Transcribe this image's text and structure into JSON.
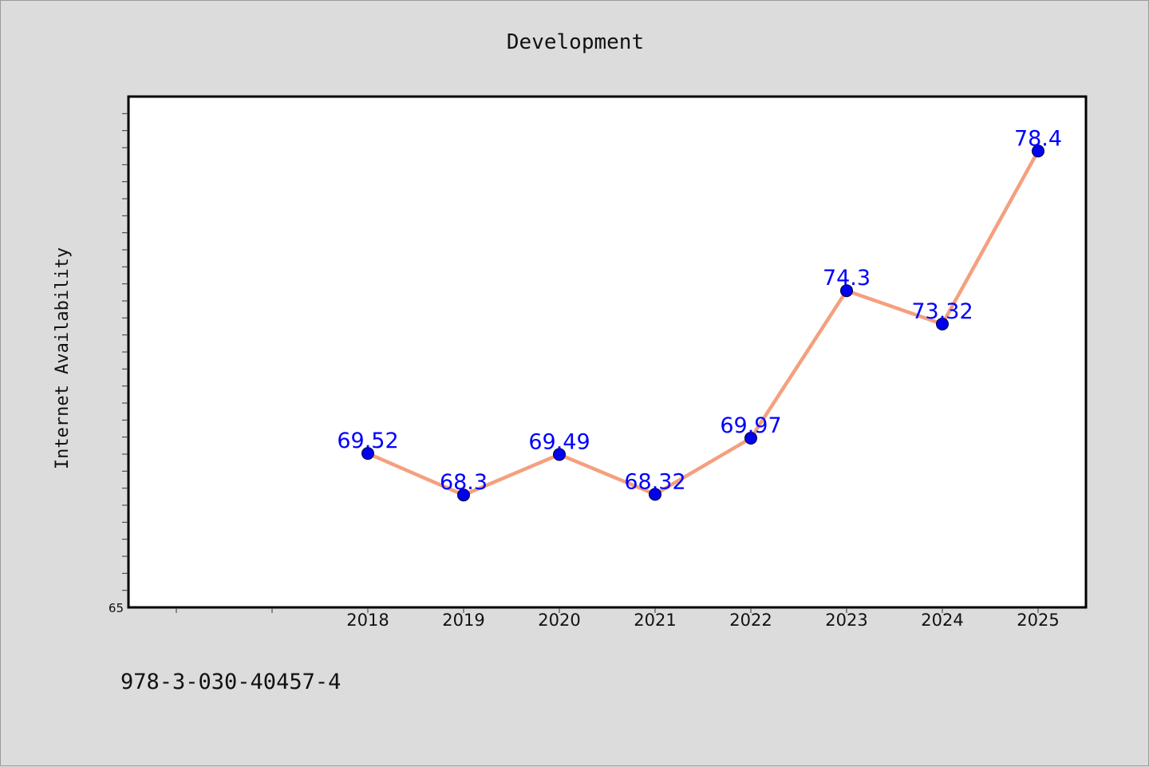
{
  "chart_data": {
    "type": "line",
    "title": "Development",
    "xlabel": "",
    "ylabel": "Internet Availability",
    "x": [
      "2018",
      "2019",
      "2020",
      "2021",
      "2022",
      "2023",
      "2024",
      "2025"
    ],
    "series": [
      {
        "values": [
          69.52,
          68.3,
          69.49,
          68.32,
          69.97,
          74.3,
          73.32,
          78.4
        ]
      }
    ],
    "ylim": [
      65,
      80
    ],
    "y_tick_labels": [
      "65"
    ],
    "grid": false,
    "legend": "none",
    "colors": {
      "line": "#f4a07e",
      "marker": "#0000ee",
      "data_label": "#0000ff",
      "background": "#dcdcdc",
      "plot_background": "#ffffff"
    }
  },
  "footer": {
    "text": "978-3-030-40457-4"
  }
}
